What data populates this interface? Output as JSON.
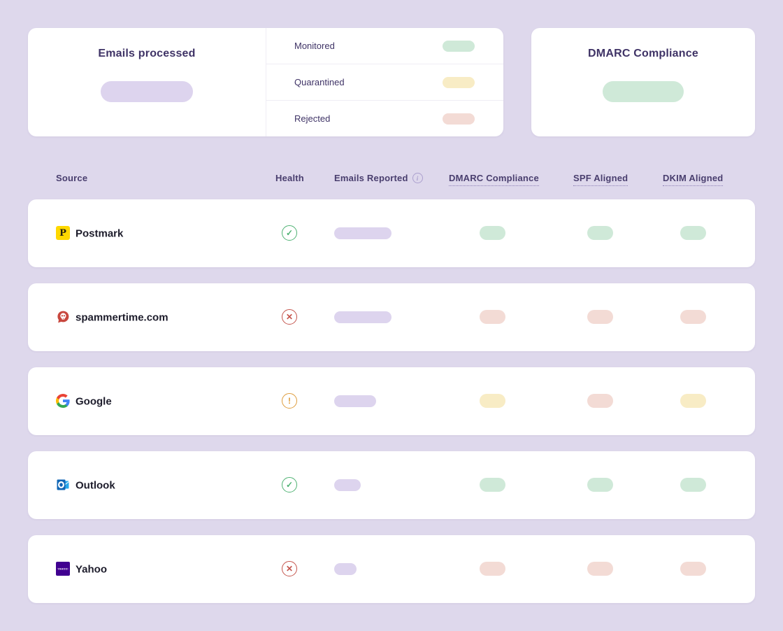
{
  "colors": {
    "background": "#ded8ec",
    "card": "#ffffff",
    "title_text": "#3f3366",
    "header_text": "#493e6e",
    "row_text": "#1d1c2b",
    "divider": "#efedf5",
    "lavender_pill": "#ddd4ee",
    "green_pill": "#cfe9d8",
    "yellow_pill": "#f8ecc5",
    "red_pill": "#f3dbd5",
    "ok_icon": "#4fb273",
    "error_icon": "#c4544c",
    "warning_icon": "#de9c3c"
  },
  "summary_card": {
    "title": "Emails processed",
    "value_pill": "lavender",
    "legend": [
      {
        "label": "Monitored",
        "pill": "green"
      },
      {
        "label": "Quarantined",
        "pill": "yellow"
      },
      {
        "label": "Rejected",
        "pill": "red"
      }
    ]
  },
  "compliance_card": {
    "title": "DMARC Compliance",
    "value_pill": "green"
  },
  "table": {
    "headers": {
      "source": "Source",
      "health": "Health",
      "emails_reported": "Emails Reported",
      "dmarc": "DMARC Compliance",
      "spf": "SPF Aligned",
      "dkim": "DKIM Aligned"
    },
    "info_icon_glyph": "i",
    "health_glyphs": {
      "ok": "✓",
      "error": "✕",
      "warning": "!"
    },
    "rows": [
      {
        "name": "Postmark",
        "icon": "postmark-icon",
        "icon_letter": "P",
        "health": "ok",
        "emails_pill_width": 82,
        "dmarc": "green",
        "spf": "green",
        "dkim": "green"
      },
      {
        "name": "spammertime.com",
        "icon": "spam-skull-icon",
        "health": "error",
        "emails_pill_width": 82,
        "dmarc": "red",
        "spf": "red",
        "dkim": "red"
      },
      {
        "name": "Google",
        "icon": "google-icon",
        "health": "warning",
        "emails_pill_width": 60,
        "dmarc": "yellow",
        "spf": "red",
        "dkim": "yellow"
      },
      {
        "name": "Outlook",
        "icon": "outlook-icon",
        "health": "ok",
        "emails_pill_width": 38,
        "dmarc": "green",
        "spf": "green",
        "dkim": "green"
      },
      {
        "name": "Yahoo",
        "icon": "yahoo-icon",
        "icon_text": "YAHOO!",
        "health": "error",
        "emails_pill_width": 32,
        "dmarc": "red",
        "spf": "red",
        "dkim": "red"
      }
    ]
  }
}
